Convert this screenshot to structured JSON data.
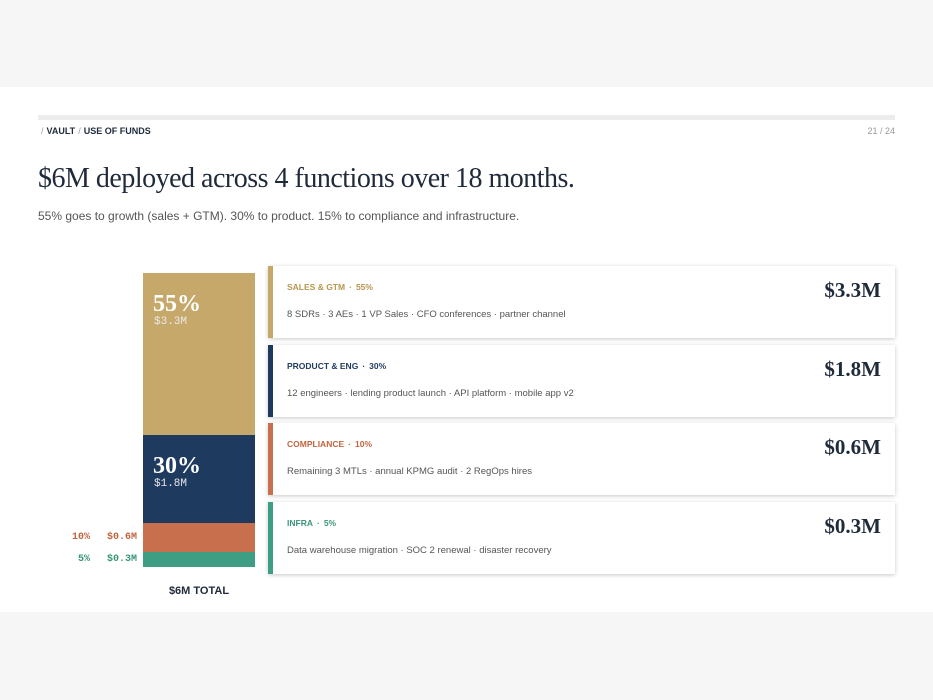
{
  "breadcrumb": [
    "VAULT",
    "USE OF FUNDS"
  ],
  "separator": "/",
  "page": "21 / 24",
  "title": "$6M deployed across 4 functions over 18 months.",
  "subtitle": "55% goes to growth (sales + GTM). 30% to product. 15% to compliance and infrastructure.",
  "dot": "·",
  "segments": [
    {
      "name": "SALES & GTM",
      "percent": 55,
      "percent_label": "55%",
      "amount_label": "$3.3M",
      "details": "8 SDRs · 3 AEs · 1 VP Sales · CFO conferences · partner channel",
      "color": "#c6a96a",
      "accent": "#b8964f"
    },
    {
      "name": "PRODUCT & ENG",
      "percent": 30,
      "percent_label": "30%",
      "amount_label": "$1.8M",
      "details": "12 engineers · lending product launch · API platform · mobile app v2",
      "color": "#1f3a5f",
      "accent": "#1f3a5f"
    },
    {
      "name": "COMPLIANCE",
      "percent": 10,
      "percent_label": "10%",
      "amount_label": "$0.6M",
      "details": "Remaining 3 MTLs · annual KPMG audit · 2 RegOps hires",
      "color": "#c8704e",
      "accent": "#c0653f"
    },
    {
      "name": "INFRA",
      "percent": 5,
      "percent_label": "5%",
      "amount_label": "$0.3M",
      "details": "Data warehouse migration · SOC 2 renewal · disaster recovery",
      "color": "#3e9e83",
      "accent": "#3a957a"
    }
  ],
  "total_label": "$6M TOTAL"
}
